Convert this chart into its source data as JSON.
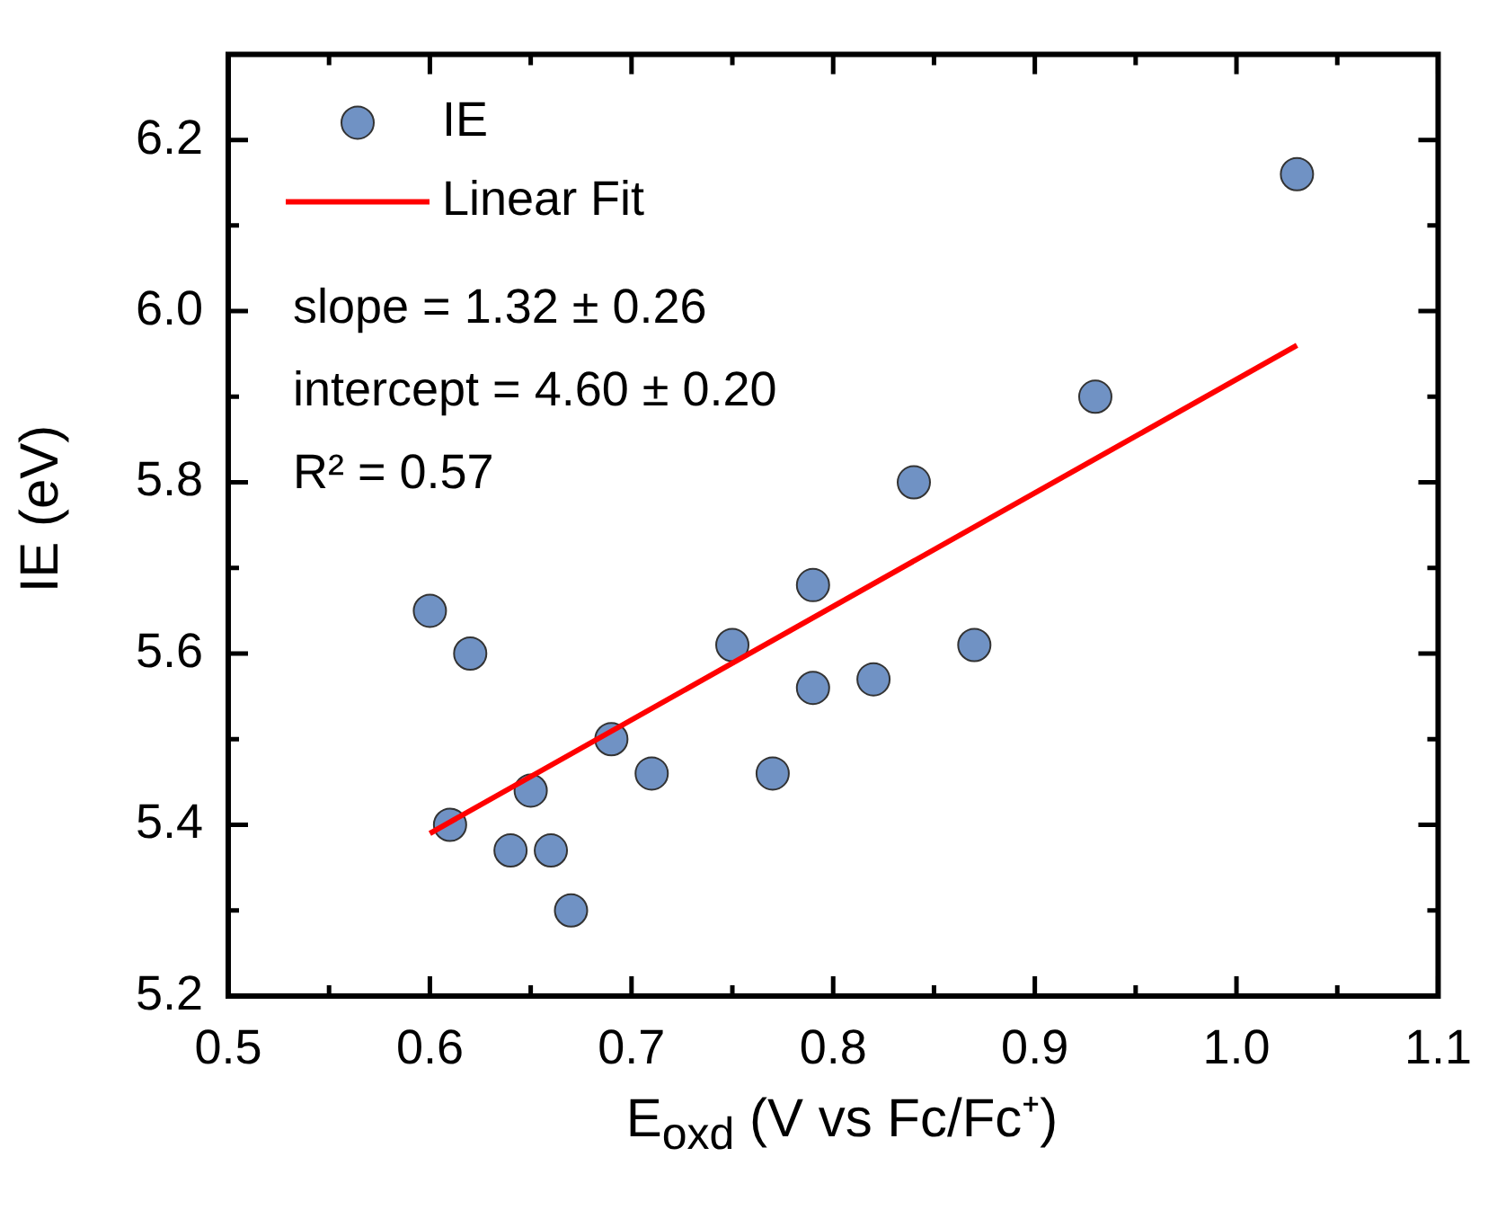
{
  "chart_data": {
    "type": "scatter",
    "xlabel": "E$_{oxd}$ (V vs Fc/Fc⁺)",
    "ylabel": "IE (eV)",
    "xlim": [
      0.5,
      1.1
    ],
    "ylim": [
      5.2,
      6.3
    ],
    "xticks": [
      {
        "value": 0.5,
        "label": "0.5"
      },
      {
        "value": 0.55,
        "label": null
      },
      {
        "value": 0.6,
        "label": "0.6"
      },
      {
        "value": 0.65,
        "label": null
      },
      {
        "value": 0.7,
        "label": "0.7"
      },
      {
        "value": 0.75,
        "label": null
      },
      {
        "value": 0.8,
        "label": "0.8"
      },
      {
        "value": 0.85,
        "label": null
      },
      {
        "value": 0.9,
        "label": "0.9"
      },
      {
        "value": 0.95,
        "label": null
      },
      {
        "value": 1.0,
        "label": "1.0"
      },
      {
        "value": 1.05,
        "label": null
      },
      {
        "value": 1.1,
        "label": "1.1"
      }
    ],
    "yticks": [
      {
        "value": 5.2,
        "label": "5.2"
      },
      {
        "value": 5.3,
        "label": null
      },
      {
        "value": 5.4,
        "label": "5.4"
      },
      {
        "value": 5.5,
        "label": null
      },
      {
        "value": 5.6,
        "label": "5.6"
      },
      {
        "value": 5.7,
        "label": null
      },
      {
        "value": 5.8,
        "label": "5.8"
      },
      {
        "value": 5.9,
        "label": null
      },
      {
        "value": 6.0,
        "label": "6.0"
      },
      {
        "value": 6.1,
        "label": null
      },
      {
        "value": 6.2,
        "label": "6.2"
      }
    ],
    "grid": false,
    "legend": "top left",
    "series": [
      {
        "name": "IE",
        "type": "scatter",
        "marker": "circle",
        "color": "#7092c4",
        "x": [
          0.6,
          0.62,
          0.61,
          0.64,
          0.65,
          0.66,
          0.67,
          0.69,
          0.71,
          0.75,
          0.77,
          0.79,
          0.79,
          0.82,
          0.84,
          0.87,
          0.93,
          1.03
        ],
        "values": [
          5.65,
          5.6,
          5.4,
          5.37,
          5.44,
          5.37,
          5.3,
          5.5,
          5.46,
          5.61,
          5.46,
          5.68,
          5.56,
          5.57,
          5.8,
          5.61,
          5.9,
          6.16
        ]
      },
      {
        "name": "Linear Fit",
        "type": "line",
        "marker": "none",
        "color": "#ff0000",
        "x": [
          0.6,
          1.03
        ],
        "values": [
          5.39,
          5.96
        ]
      }
    ],
    "annotations": [
      "slope = 1.32 ± 0.26",
      "intercept = 4.60 ± 0.20",
      "R² = 0.57"
    ]
  }
}
